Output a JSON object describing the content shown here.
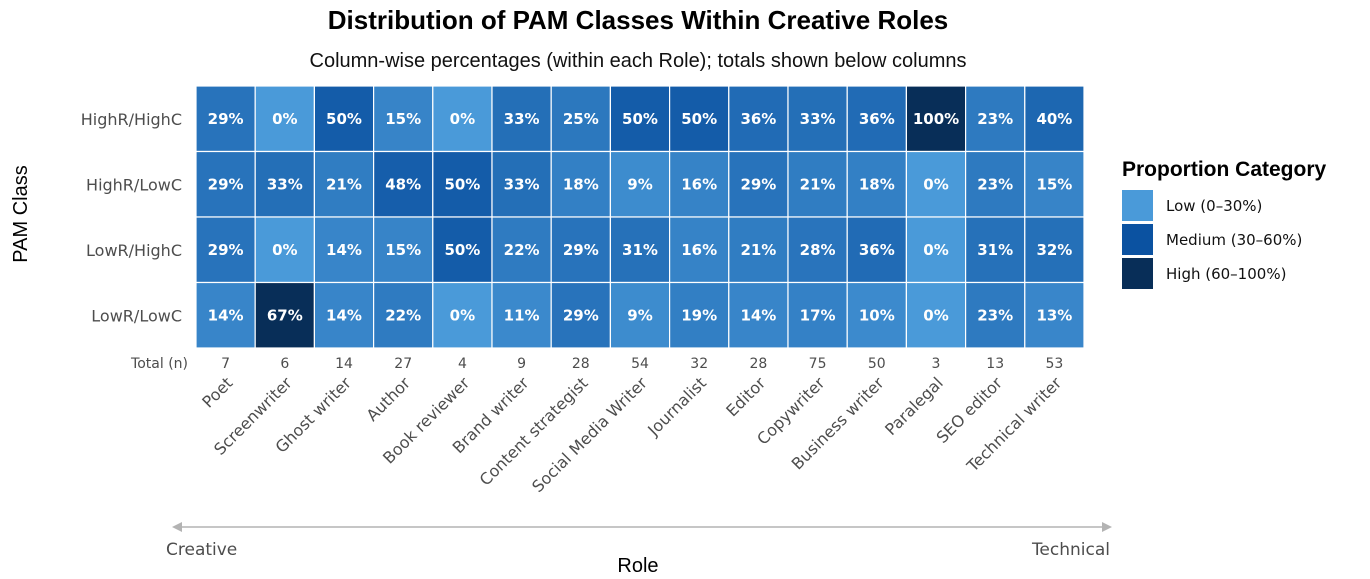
{
  "chart_data": {
    "type": "heatmap",
    "title": "Distribution of PAM Classes Within Creative Roles",
    "subtitle": "Column-wise percentages (within each Role); totals shown below columns",
    "xlabel": "Role",
    "ylabel": "PAM Class",
    "x": [
      "Poet",
      "Screenwriter",
      "Ghost writer",
      "Author",
      "Book reviewer",
      "Brand writer",
      "Content strategist",
      "Social Media Writer",
      "Journalist",
      "Editor",
      "Copywriter",
      "Business writer",
      "Paralegal",
      "SEO editor",
      "Technical writer"
    ],
    "y": [
      "HighR/HighC",
      "HighR/LowC",
      "LowR/HighC",
      "LowR/LowC"
    ],
    "values": [
      [
        29,
        0,
        50,
        15,
        0,
        33,
        25,
        50,
        50,
        36,
        33,
        36,
        100,
        23,
        40
      ],
      [
        29,
        33,
        21,
        48,
        50,
        33,
        18,
        9,
        16,
        29,
        21,
        18,
        0,
        23,
        15
      ],
      [
        29,
        0,
        14,
        15,
        50,
        22,
        29,
        31,
        16,
        21,
        28,
        36,
        0,
        31,
        32
      ],
      [
        14,
        67,
        14,
        22,
        0,
        11,
        29,
        9,
        19,
        14,
        17,
        10,
        0,
        23,
        13
      ]
    ],
    "value_suffix": "%",
    "totals_label": "Total (n)",
    "totals": [
      7,
      6,
      14,
      27,
      4,
      9,
      28,
      54,
      32,
      28,
      75,
      50,
      3,
      13,
      53
    ],
    "axis_endpoints": {
      "left": "Creative",
      "right": "Technical"
    },
    "legend": {
      "title": "Proportion Category",
      "placement": "right",
      "categories": [
        {
          "label": "Low (0–30%)",
          "color": "#4a9ad9",
          "min": 0,
          "max": 30
        },
        {
          "label": "Medium (30–60%)",
          "color": "#0b52a1",
          "min": 30,
          "max": 60
        },
        {
          "label": "High (60–100%)",
          "color": "#082e58",
          "min": 60,
          "max": 100
        }
      ]
    },
    "cell_color_scale": {
      "low": "#4a9ad9",
      "high": "#0b52a1",
      "top": "#082e58"
    }
  }
}
